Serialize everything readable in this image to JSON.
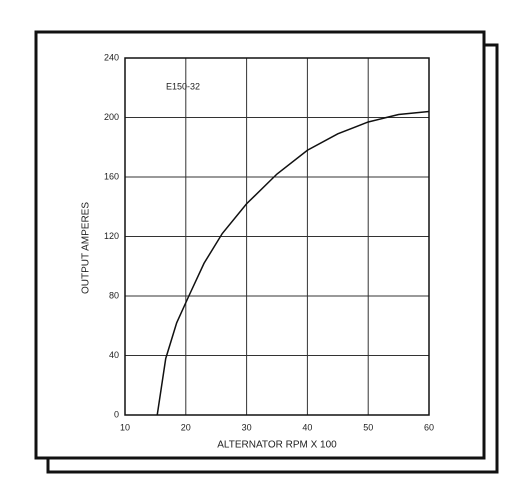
{
  "chart_data": {
    "type": "line",
    "annotation": "E150-32",
    "x_label": "ALTERNATOR RPM X 100",
    "y_label": "OUTPUT AMPERES",
    "series": [
      {
        "color": "#111111",
        "x": [
          15.3,
          16.7,
          18.5,
          20.5,
          23,
          26,
          30,
          35,
          40,
          45,
          50,
          55,
          60
        ],
        "values": [
          0,
          38,
          62,
          80,
          102,
          122,
          142,
          162,
          178,
          189,
          197,
          202,
          204
        ]
      }
    ],
    "xlim": [
      10,
      60
    ],
    "xticks": [
      10,
      20,
      30,
      40,
      50,
      60
    ],
    "ylim": [
      0,
      240
    ],
    "yticks": [
      0,
      40,
      80,
      120,
      160,
      200,
      240
    ],
    "grid": true
  }
}
